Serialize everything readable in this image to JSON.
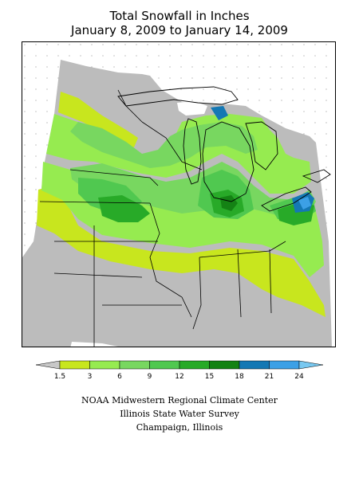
{
  "map": {
    "title_line1": "Total Snowfall in Inches",
    "title_line2": "January 8, 2009 to January 14, 2009"
  },
  "legend": {
    "ticks": [
      "1.5",
      "3",
      "6",
      "9",
      "12",
      "15",
      "18",
      "21",
      "24"
    ],
    "colors": [
      "#c8c8c8",
      "#c8e61e",
      "#96eb50",
      "#78d760",
      "#50c850",
      "#28aa28",
      "#148214",
      "#1478b4",
      "#3ca0e6",
      "#78c8f0"
    ]
  },
  "credits": {
    "line1": "NOAA Midwestern Regional Climate Center",
    "line2": "Illinois State Water Survey",
    "line3": "Champaign, Illinois"
  }
}
